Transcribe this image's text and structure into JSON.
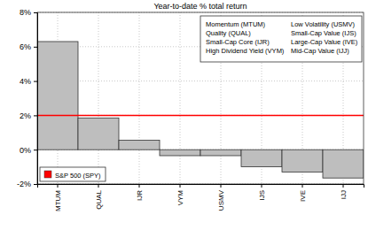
{
  "chart_data": {
    "type": "bar",
    "title": "Year-to-date % total return",
    "categories": [
      "MTUM",
      "QUAL",
      "IJR",
      "VYM",
      "USMV",
      "IJS",
      "IVE",
      "IJJ"
    ],
    "values": [
      6.3,
      1.85,
      0.55,
      -0.35,
      -0.35,
      -1.0,
      -1.3,
      -1.65
    ],
    "color": "#bebebe",
    "ylim": [
      -2,
      8
    ],
    "yticks": [
      {
        "value": -2,
        "label": "-2%"
      },
      {
        "value": 0,
        "label": "0%"
      },
      {
        "value": 2,
        "label": "2%"
      },
      {
        "value": 4,
        "label": "4%"
      },
      {
        "value": 6,
        "label": "6%"
      },
      {
        "value": 8,
        "label": "8%"
      }
    ],
    "grid": true,
    "reference_line": {
      "name": "S&P 500 (SPY)",
      "value": 2.0,
      "color": "#ff0000"
    },
    "legend": "bottom-left",
    "annotations": [
      "Momentum (MTUM)",
      "Quality (QUAL)",
      "Small-Cap Core (IJR)",
      "High Dividend Yield (VYM)",
      "Low Volatility (USMV)",
      "Small-Cap Value (IJS)",
      "Large-Cap Value (IVE)",
      "Mid-Cap Value (IJJ)"
    ]
  }
}
